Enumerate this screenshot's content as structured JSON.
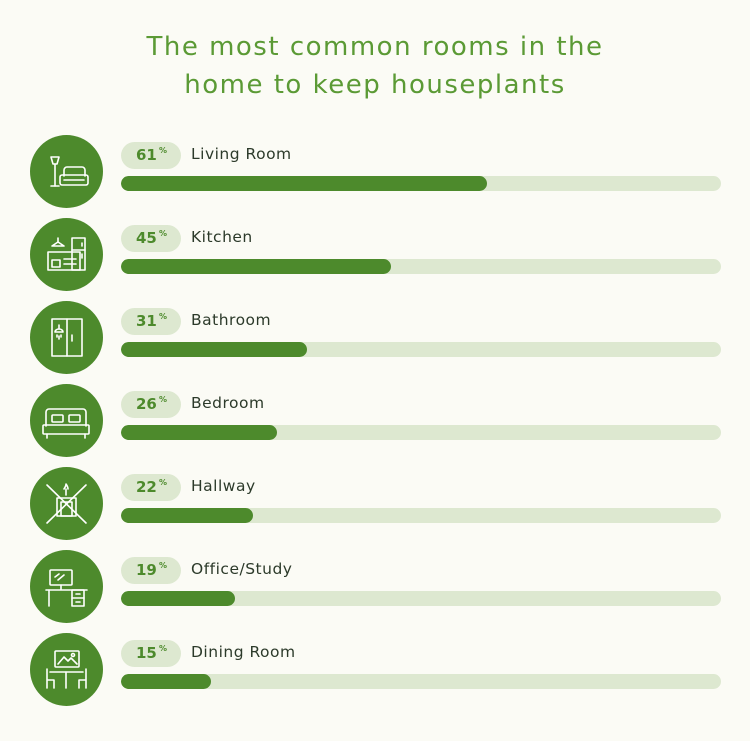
{
  "title_line1": "The most common rooms in the",
  "title_line2": "home to keep houseplants",
  "chart_data": {
    "type": "bar",
    "title": "The most common rooms in the home to keep houseplants",
    "categories": [
      "Living Room",
      "Kitchen",
      "Bathroom",
      "Bedroom",
      "Hallway",
      "Office/Study",
      "Dining Room"
    ],
    "values": [
      61,
      45,
      31,
      26,
      22,
      19,
      15
    ],
    "value_labels": [
      "61",
      "45",
      "31",
      "26",
      "22",
      "19",
      "15"
    ],
    "unit": "%",
    "ylim": [
      0,
      100
    ],
    "icons": [
      "living-room-icon",
      "kitchen-icon",
      "bathroom-icon",
      "bedroom-icon",
      "hallway-icon",
      "office-icon",
      "dining-room-icon"
    ],
    "colors": {
      "accent": "#4d8a2c",
      "track": "#dde8d0",
      "title": "#5b9a35"
    }
  }
}
